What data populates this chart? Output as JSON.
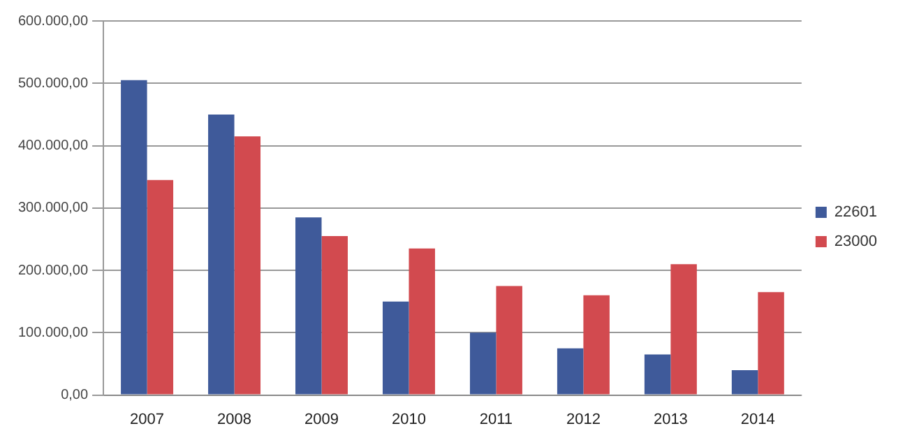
{
  "chart_data": {
    "type": "bar",
    "categories": [
      "2007",
      "2008",
      "2009",
      "2010",
      "2011",
      "2012",
      "2013",
      "2014"
    ],
    "series": [
      {
        "name": "22601",
        "color": "#3f5a9a",
        "values": [
          505000,
          450000,
          285000,
          150000,
          100000,
          75000,
          65000,
          40000
        ]
      },
      {
        "name": "23000",
        "color": "#d24a4f",
        "values": [
          345000,
          415000,
          255000,
          235000,
          175000,
          160000,
          210000,
          165000
        ]
      }
    ],
    "ylim": [
      0,
      600000
    ],
    "yticks": [
      {
        "value": 0,
        "label": "0,00"
      },
      {
        "value": 100000,
        "label": "100.000,00"
      },
      {
        "value": 200000,
        "label": "200.000,00"
      },
      {
        "value": 300000,
        "label": "300.000,00"
      },
      {
        "value": 400000,
        "label": "400.000,00"
      },
      {
        "value": 500000,
        "label": "500.000,00"
      },
      {
        "value": 600000,
        "label": "600.000,00"
      }
    ],
    "grid": "y",
    "legend": "right"
  }
}
